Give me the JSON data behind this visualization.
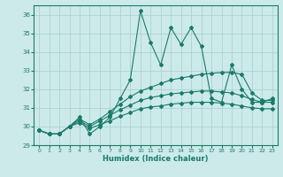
{
  "x": [
    0,
    1,
    2,
    3,
    4,
    5,
    6,
    7,
    8,
    9,
    10,
    11,
    12,
    13,
    14,
    15,
    16,
    17,
    18,
    19,
    20,
    21,
    22,
    23
  ],
  "line1": [
    29.8,
    29.6,
    29.6,
    30.0,
    30.5,
    29.6,
    30.0,
    30.5,
    31.5,
    32.5,
    36.2,
    34.5,
    33.3,
    35.3,
    34.4,
    35.3,
    34.3,
    31.5,
    31.3,
    33.3,
    32.0,
    31.3,
    31.3,
    31.5
  ],
  "line2": [
    29.8,
    29.6,
    29.6,
    30.0,
    30.4,
    30.1,
    30.4,
    30.8,
    31.2,
    31.6,
    31.9,
    32.1,
    32.3,
    32.5,
    32.6,
    32.7,
    32.8,
    32.85,
    32.9,
    32.9,
    32.8,
    31.8,
    31.4,
    31.4
  ],
  "line3": [
    29.8,
    29.6,
    29.6,
    30.0,
    30.3,
    30.0,
    30.3,
    30.6,
    30.9,
    31.15,
    31.4,
    31.55,
    31.65,
    31.75,
    31.8,
    31.85,
    31.9,
    31.9,
    31.85,
    31.8,
    31.65,
    31.45,
    31.3,
    31.3
  ],
  "line4": [
    29.8,
    29.6,
    29.6,
    30.0,
    30.2,
    29.9,
    30.1,
    30.3,
    30.55,
    30.75,
    30.95,
    31.05,
    31.1,
    31.2,
    31.25,
    31.3,
    31.3,
    31.3,
    31.25,
    31.2,
    31.1,
    31.0,
    30.95,
    30.95
  ],
  "line_color": "#1a7a6a",
  "bg_color": "#cceaea",
  "grid_color": "#aacccc",
  "xlabel": "Humidex (Indice chaleur)",
  "xlim": [
    -0.5,
    23.5
  ],
  "ylim": [
    29.0,
    36.5
  ],
  "yticks": [
    29,
    30,
    31,
    32,
    33,
    34,
    35,
    36
  ],
  "xticks": [
    0,
    1,
    2,
    3,
    4,
    5,
    6,
    7,
    8,
    9,
    10,
    11,
    12,
    13,
    14,
    15,
    16,
    17,
    18,
    19,
    20,
    21,
    22,
    23
  ]
}
